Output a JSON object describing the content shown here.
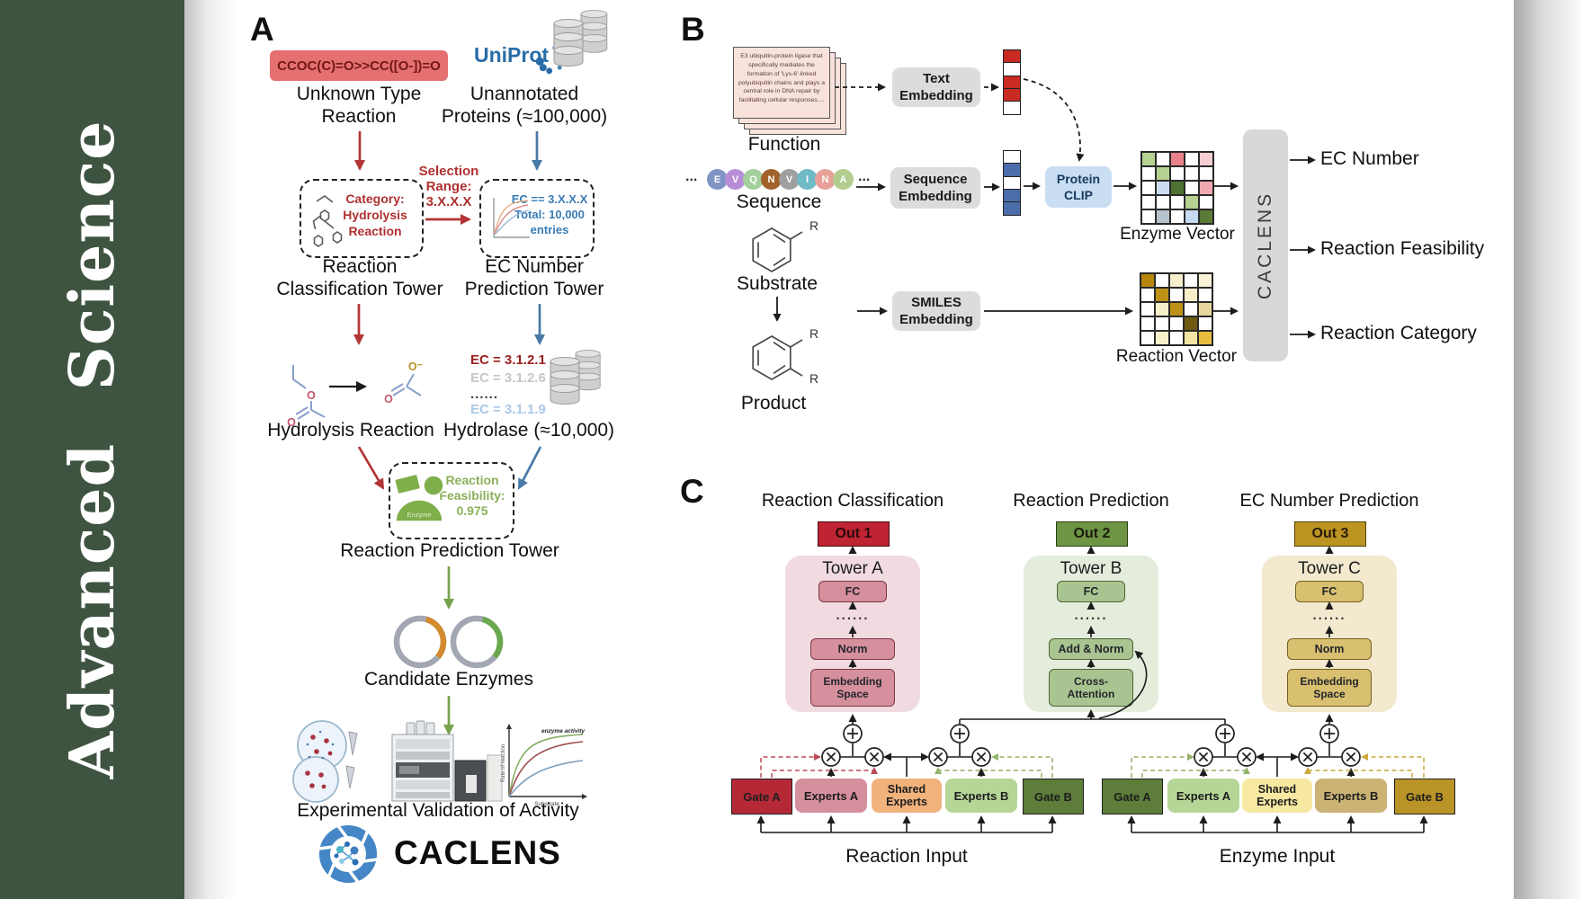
{
  "journal": {
    "name": "Advanced Science"
  },
  "colors": {
    "sidebar_green": "#3e5340",
    "uniprot_blue": "#2a6da6",
    "arrow_red": "#b23535",
    "arrow_blue": "#4879a8",
    "arrow_green": "#79a24c",
    "enzyme_green": "#7fae4a",
    "towerA_pink": "#d68f9d",
    "towerB_green": "#a9c490",
    "towerC_gold": "#d9bf70",
    "out1_red": "#bf2433",
    "out2_green": "#6d9544",
    "out3_gold": "#bb9422"
  },
  "panelA": {
    "label": "A",
    "smiles": "CCOC(C)=O>>CC([O-])=O",
    "unknown_l1": "Unknown Type",
    "unknown_l2": "Reaction",
    "uniprot": "UniProt",
    "unannotated_l1": "Unannotated",
    "unannotated_l2": "Proteins (≈100,000)",
    "selection_l1": "Selection",
    "selection_l2": "Range:",
    "selection_l3": "3.X.X.X",
    "category_l1": "Category:",
    "category_l2": "Hydrolysis",
    "category_l3": "Reaction",
    "cls_tower_l1": "Reaction",
    "cls_tower_l2": "Classification Tower",
    "ec_box_l1": "EC == 3.X.X.X",
    "ec_box_l2": "Total: 10,000",
    "ec_box_l3": "entries",
    "ec_tower_l1": "EC Number",
    "ec_tower_l2": "Prediction Tower",
    "hydrolysis_label": "Hydrolysis Reaction",
    "ec_list": [
      "EC = 3.1.2.1",
      "EC = 3.1.2.6",
      "......",
      "EC = 3.1.1.9"
    ],
    "hydrolase_label": "Hydrolase (≈10,000)",
    "enzyme_badge": "Enzyme",
    "feasibility_l1": "Reaction",
    "feasibility_l2": "Feasibility:",
    "feasibility_l3": "0.975",
    "pred_tower_label": "Reaction Prediction Tower",
    "candidate_label": "Candidate Enzymes",
    "kinetics": {
      "ylabel": "Rate of reaction",
      "xlabel": "Substrate",
      "annotation": "enzyme activity"
    },
    "validation_label": "Experimental Validation of Activity",
    "logo": "CACLENS",
    "atoms": {
      "o": "O",
      "o_minus": "O⁻"
    }
  },
  "panelB": {
    "label": "B",
    "function_text": "E3 ubiquitin-protein ligase that specifically mediates the formation of 'Lys-6'-linked polyubiquitin chains and plays a central role in DNA repair by facilitating cellular responses....",
    "function_label": "Function",
    "ellipsis": "...",
    "residues": [
      {
        "letter": "E",
        "color": "#8094c6"
      },
      {
        "letter": "V",
        "color": "#b78ed6"
      },
      {
        "letter": "Q",
        "color": "#a3cf9d"
      },
      {
        "letter": "N",
        "color": "#a3622b"
      },
      {
        "letter": "V",
        "color": "#9f9f9f"
      },
      {
        "letter": "I",
        "color": "#6fbac6"
      },
      {
        "letter": "N",
        "color": "#e7a198"
      },
      {
        "letter": "A",
        "color": "#b2cd8d"
      }
    ],
    "sequence_label": "Sequence",
    "substrate_label": "Substrate",
    "product_label": "Product",
    "r_group": "R",
    "text_emb_l1": "Text",
    "text_emb_l2": "Embedding",
    "seq_emb_l1": "Sequence",
    "seq_emb_l2": "Embedding",
    "smiles_emb_l1": "SMILES",
    "smiles_emb_l2": "Embedding",
    "clip_l1": "Protein",
    "clip_l2": "CLIP",
    "text_vector": [
      "#c92a22",
      "#ffffff",
      "#c92a22",
      "#c92a22",
      "#ffffff"
    ],
    "sequence_vector": [
      "#ffffff",
      "#4b6daa",
      "#ffffff",
      "#4b6daa",
      "#4b6daa"
    ],
    "enzyme_grid": [
      [
        "#b5d291",
        "#ffffff",
        "#e8818a",
        "#ffffff",
        "#f6cdd2"
      ],
      [
        "#ffffff",
        "#b5d291",
        "#ffffff",
        "#ffffff",
        "#ffffff"
      ],
      [
        "#ffffff",
        "#ccddf1",
        "#4e7231",
        "#ffffff",
        "#f0a9b0"
      ],
      [
        "#ffffff",
        "#ffffff",
        "#ffffff",
        "#b5d291",
        "#ffffff"
      ],
      [
        "#ffffff",
        "#b6c3cd",
        "#ffffff",
        "#c5daf0",
        "#5a7a36"
      ]
    ],
    "reaction_grid": [
      [
        "#b8860b",
        "#ffffff",
        "#f6efca",
        "#ffffff",
        "#faf3d8"
      ],
      [
        "#ffffff",
        "#bd9116",
        "#ffffff",
        "#f6efca",
        "#ffffff"
      ],
      [
        "#ffffff",
        "#f6efca",
        "#bd9116",
        "#ffffff",
        "#e8d79c"
      ],
      [
        "#ffffff",
        "#ffffff",
        "#ffffff",
        "#6f5c12",
        "#ffffff"
      ],
      [
        "#ffffff",
        "#f6efca",
        "#ffffff",
        "#f3e4a4",
        "#e7bc3e"
      ]
    ],
    "enzyme_vector_label": "Enzyme Vector",
    "reaction_vector_label": "Reaction Vector",
    "caclens_bar": "CACLENS",
    "outputs": [
      "EC Number",
      "Reaction Feasibility",
      "Reaction Category"
    ]
  },
  "panelC": {
    "label": "C",
    "titles": [
      "Reaction Classification",
      "Reaction Prediction",
      "EC Number Prediction"
    ],
    "outs": [
      "Out 1",
      "Out 2",
      "Out 3"
    ],
    "towerA": {
      "title": "Tower A",
      "fc": "FC",
      "dots": "......",
      "mid": "Norm",
      "bot_l1": "Embedding",
      "bot_l2": "Space"
    },
    "towerB": {
      "title": "Tower B",
      "fc": "FC",
      "dots": "......",
      "mid": "Add & Norm",
      "bot_l1": "Cross-",
      "bot_l2": "Attention"
    },
    "towerC": {
      "title": "Tower C",
      "fc": "FC",
      "dots": "......",
      "mid": "Norm",
      "bot_l1": "Embedding",
      "bot_l2": "Space"
    },
    "reaction_moe": {
      "gateA": "Gate A",
      "expertsA": "Experts A",
      "shared_l1": "Shared",
      "shared_l2": "Experts",
      "expertsB": "Experts B",
      "gateB": "Gate B",
      "input": "Reaction Input"
    },
    "enzyme_moe": {
      "gateA": "Gate A",
      "expertsA": "Experts A",
      "shared_l1": "Shared",
      "shared_l2": "Experts",
      "expertsB": "Experts B",
      "gateB": "Gate B",
      "input": "Enzyme Input"
    }
  }
}
